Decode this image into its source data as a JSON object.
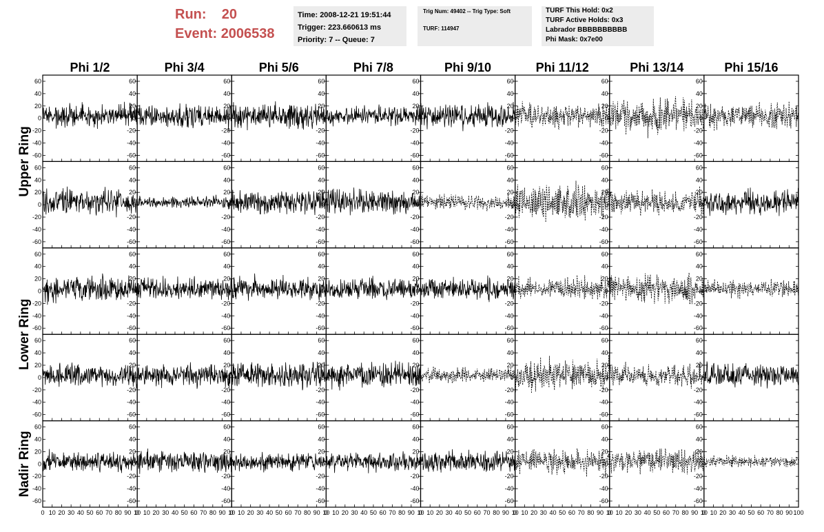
{
  "header": {
    "run_label": "Run:",
    "run_value": "20",
    "event_label": "Event:",
    "event_value": "2006538",
    "info_box_1": [
      "Time: 2008-12-21 19:51:44",
      "Trigger: 223.660613 ms",
      "Priority: 7 -- Queue: 7"
    ],
    "info_box_2": [
      "Trig Num: 49402 -- Trig Type: Soft",
      "TURF: 114947"
    ],
    "info_box_3": [
      "TURF This Hold: 0x2",
      "TURF Active Holds: 0x3",
      "Labrador BBBBBBBBBB",
      "Phi Mask: 0x7e00"
    ],
    "colors": {
      "run_text": "#c45050",
      "info_box_bg": "#ececec"
    }
  },
  "chart_data": {
    "type": "line",
    "columns": [
      "Phi 1/2",
      "Phi 3/4",
      "Phi 5/6",
      "Phi 7/8",
      "Phi 9/10",
      "Phi 11/12",
      "Phi 13/14",
      "Phi 15/16"
    ],
    "rows": [
      "Upper Ring",
      "Lower Ring",
      "Nadir Ring"
    ],
    "sub_rows_per_ring": [
      2,
      2,
      1
    ],
    "xlim": [
      0,
      100
    ],
    "ylim": [
      -70,
      70
    ],
    "y_ticks": [
      -60,
      -40,
      -20,
      0,
      20,
      40,
      60
    ],
    "x_ticks": [
      0,
      10,
      20,
      30,
      40,
      50,
      60,
      70,
      80,
      90,
      100
    ],
    "x_tick_labels": [
      [
        "0",
        "10",
        "20",
        "30",
        "40",
        "50",
        "60",
        "70",
        "80",
        "90",
        "10"
      ],
      [
        "0",
        "10",
        "20",
        "30",
        "40",
        "50",
        "60",
        "70",
        "80",
        "90",
        "10"
      ],
      [
        "0",
        "10",
        "20",
        "30",
        "40",
        "50",
        "60",
        "70",
        "80",
        "90",
        "10"
      ],
      [
        "0",
        "10",
        "20",
        "30",
        "40",
        "50",
        "60",
        "70",
        "80",
        "90",
        "10"
      ],
      [
        "0",
        "10",
        "20",
        "30",
        "40",
        "50",
        "60",
        "70",
        "80",
        "90",
        "10"
      ],
      [
        "0",
        "10",
        "20",
        "30",
        "40",
        "50",
        "60",
        "70",
        "80",
        "90",
        "10"
      ],
      [
        "0",
        "10",
        "20",
        "30",
        "40",
        "50",
        "60",
        "70",
        "80",
        "90",
        "10"
      ],
      [
        "0",
        "10",
        "20",
        "30",
        "40",
        "50",
        "60",
        "70",
        "80",
        "90",
        "100"
      ]
    ],
    "dashed_panels": [
      [
        0,
        5
      ],
      [
        0,
        6
      ],
      [
        0,
        7
      ],
      [
        1,
        4
      ],
      [
        1,
        5
      ],
      [
        1,
        6
      ],
      [
        2,
        5
      ],
      [
        2,
        6
      ],
      [
        2,
        7
      ],
      [
        3,
        4
      ],
      [
        3,
        5
      ],
      [
        3,
        6
      ],
      [
        4,
        5
      ],
      [
        4,
        6
      ],
      [
        4,
        7
      ]
    ],
    "amplitude": [
      [
        15,
        16,
        17,
        13,
        17,
        17,
        24,
        17
      ],
      [
        18,
        8,
        17,
        17,
        10,
        25,
        17,
        17
      ],
      [
        18,
        15,
        16,
        15,
        15,
        15,
        19,
        12
      ],
      [
        15,
        16,
        18,
        17,
        10,
        22,
        15,
        17
      ],
      [
        14,
        14,
        12,
        13,
        14,
        17,
        17,
        8
      ]
    ],
    "n_points": 260
  }
}
